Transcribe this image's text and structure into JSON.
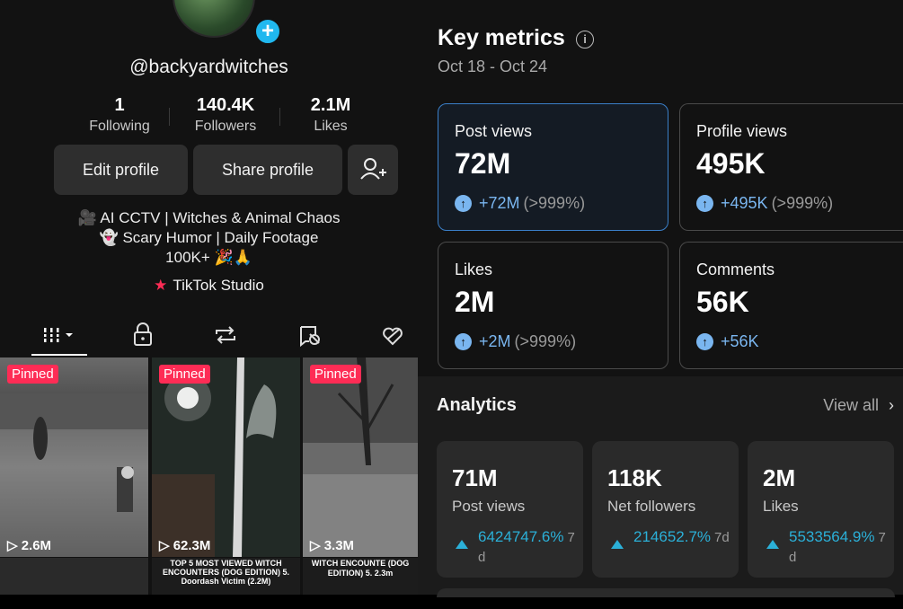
{
  "profile": {
    "username": "@backyardwitches",
    "stats": [
      {
        "value": "1",
        "label": "Following"
      },
      {
        "value": "140.4K",
        "label": "Followers"
      },
      {
        "value": "2.1M",
        "label": "Likes"
      }
    ],
    "buttons": {
      "edit": "Edit profile",
      "share": "Share profile",
      "add_friend_icon": "add-user-icon"
    },
    "bio": [
      "🎥 AI CCTV | Witches & Animal Chaos",
      "👻 Scary Humor | Daily Footage",
      "100K+ 🎉🙏"
    ],
    "studio_link": "TikTok Studio",
    "tabs": [
      "videos-grid-icon",
      "lock-icon",
      "repost-icon",
      "tagged-icon",
      "liked-icon"
    ],
    "videos": [
      {
        "badge": "Pinned",
        "views": "2.6M"
      },
      {
        "badge": "Pinned",
        "views": "62.3M"
      },
      {
        "badge": "Pinned",
        "views": "3.3M"
      }
    ],
    "strip_texts": [
      "",
      "TOP 5 MOST VIEWED WITCH ENCOUNTERS (DOG EDITION) 5. Doordash Victim (2.2M)",
      "WITCH ENCOUNTE (DOG EDITION) 5. 2.3m"
    ]
  },
  "key_metrics": {
    "title": "Key metrics",
    "date_range": "Oct 18 - Oct 24",
    "cards": [
      {
        "label": "Post views",
        "value": "72M",
        "change": "+72M",
        "pct": "(>999%)",
        "active": true
      },
      {
        "label": "Profile views",
        "value": "495K",
        "change": "+495K",
        "pct": "(>999%)",
        "active": false
      },
      {
        "label": "Likes",
        "value": "2M",
        "change": "+2M",
        "pct": "(>999%)",
        "active": false
      },
      {
        "label": "Comments",
        "value": "56K",
        "change": "+56K",
        "pct": "",
        "active": false
      }
    ]
  },
  "analytics": {
    "title": "Analytics",
    "view_all": "View all",
    "cards": [
      {
        "value": "71M",
        "label": "Post views",
        "change": "6424747.6%",
        "period": "7d"
      },
      {
        "value": "118K",
        "label": "Net followers",
        "change": "214652.7%",
        "period": "7d"
      },
      {
        "value": "2M",
        "label": "Likes",
        "change": "5533564.9%",
        "period": "7d"
      }
    ]
  },
  "colors": {
    "accent_red": "#fe2c55",
    "plus_blue": "#20b8ef",
    "metric_blue": "#7ab6f0",
    "analytics_teal": "#2bb0d8"
  }
}
